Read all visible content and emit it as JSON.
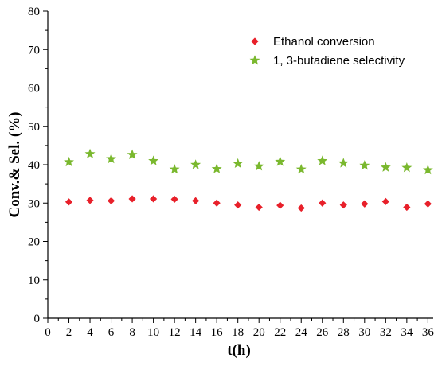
{
  "chart_data": {
    "type": "scatter",
    "title": "",
    "xlabel": "t(h)",
    "ylabel": "Conv.& Sel. (%)",
    "xlim": [
      0,
      36.5
    ],
    "ylim": [
      0,
      80
    ],
    "x_ticks": [
      0,
      2,
      4,
      6,
      8,
      10,
      12,
      14,
      16,
      18,
      20,
      22,
      24,
      26,
      28,
      30,
      32,
      34,
      36
    ],
    "y_ticks": [
      0,
      10,
      20,
      30,
      40,
      50,
      60,
      70,
      80
    ],
    "grid": false,
    "legend_position": "top-right",
    "series": [
      {
        "name": "Ethanol conversion",
        "marker": "diamond",
        "color": "#e8202a",
        "x": [
          2,
          4,
          6,
          8,
          10,
          12,
          14,
          16,
          18,
          20,
          22,
          24,
          26,
          28,
          30,
          32,
          34,
          36
        ],
        "y": [
          30.3,
          30.7,
          30.6,
          31.1,
          31.1,
          31.0,
          30.6,
          30.0,
          29.5,
          28.9,
          29.4,
          28.7,
          30.0,
          29.5,
          29.8,
          30.4,
          28.9,
          29.8
        ]
      },
      {
        "name": "1, 3-butadiene selectivity",
        "marker": "star",
        "color": "#7ab82e",
        "x": [
          2,
          4,
          6,
          8,
          10,
          12,
          14,
          16,
          18,
          20,
          22,
          24,
          26,
          28,
          30,
          32,
          34,
          36
        ],
        "y": [
          40.7,
          42.8,
          41.5,
          42.6,
          41.0,
          38.8,
          40.0,
          38.9,
          40.3,
          39.6,
          40.8,
          38.8,
          41.0,
          40.4,
          39.8,
          39.3,
          39.2,
          38.6
        ]
      }
    ]
  }
}
